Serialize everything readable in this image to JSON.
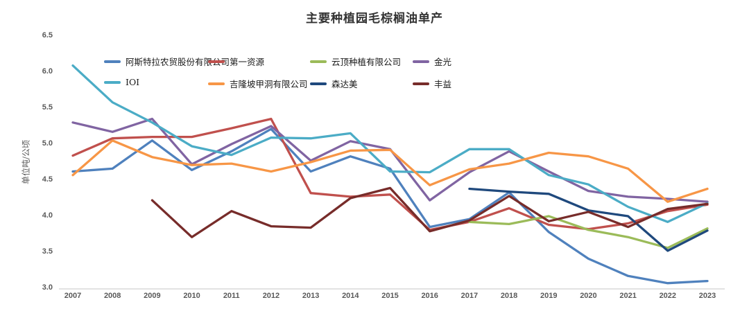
{
  "chart_data": {
    "type": "line",
    "title": "主要种植园毛棕榈油单产",
    "ylabel": "单位吨/公顷",
    "x": [
      "2007",
      "2008",
      "2009",
      "2010",
      "2011",
      "2012",
      "2013",
      "2014",
      "2015",
      "2016",
      "2017",
      "2018",
      "2019",
      "2020",
      "2021",
      "2022",
      "2023"
    ],
    "y_ticks": [
      "6.5",
      "6.0",
      "5.5",
      "5.0",
      "4.5",
      "4.0",
      "3.5",
      "3.0"
    ],
    "ylim": [
      3.0,
      6.5
    ],
    "grid": false,
    "legend_position": "top-left-two-rows",
    "colors": {
      "axis_line": "#D9D9D9",
      "tick_text": "#595959",
      "title_text": "#333333",
      "legend_text": "#1A1A1A"
    },
    "series": [
      {
        "id": "astra",
        "name": "阿斯特拉农贸股份有限公司",
        "color": "#4F81BD",
        "values": [
          4.62,
          4.66,
          5.05,
          4.64,
          4.9,
          5.21,
          4.62,
          4.83,
          4.66,
          3.85,
          3.96,
          4.33,
          3.78,
          3.41,
          3.17,
          3.07,
          3.1
        ]
      },
      {
        "id": "first-resources",
        "name": "第一资源",
        "color": "#C0504D",
        "values": [
          4.84,
          5.08,
          5.1,
          5.1,
          5.22,
          5.35,
          4.32,
          4.27,
          4.3,
          3.81,
          3.92,
          4.11,
          3.88,
          3.82,
          3.9,
          4.07,
          4.16
        ]
      },
      {
        "id": "genting",
        "name": "云顶种植有限公司",
        "color": "#9BBB59",
        "values": [
          null,
          null,
          null,
          null,
          null,
          null,
          null,
          null,
          null,
          null,
          3.92,
          3.89,
          4.0,
          3.81,
          3.71,
          3.56,
          3.83
        ]
      },
      {
        "id": "golden-agri",
        "name": "金光",
        "color": "#8064A2",
        "values": [
          5.3,
          5.17,
          5.35,
          4.72,
          5.0,
          5.25,
          4.77,
          5.04,
          4.93,
          4.22,
          4.61,
          4.9,
          4.62,
          4.35,
          4.27,
          4.24,
          4.2
        ]
      },
      {
        "id": "ioi",
        "name": "IOI",
        "color": "#4BACC6",
        "values": [
          6.09,
          5.58,
          5.3,
          4.97,
          4.85,
          5.09,
          5.08,
          5.15,
          4.62,
          4.61,
          4.93,
          4.93,
          4.57,
          4.44,
          4.13,
          3.92,
          4.18
        ]
      },
      {
        "id": "klk",
        "name": "吉隆坡甲洞有限公司",
        "color": "#F79646",
        "values": [
          4.57,
          5.05,
          4.82,
          4.71,
          4.73,
          4.62,
          4.75,
          4.91,
          4.92,
          4.43,
          4.65,
          4.73,
          4.88,
          4.83,
          4.66,
          4.2,
          4.38
        ]
      },
      {
        "id": "sime-darby",
        "name": "森达美",
        "color": "#1F497D",
        "values": [
          null,
          null,
          null,
          null,
          null,
          null,
          null,
          null,
          null,
          null,
          4.38,
          4.34,
          4.31,
          4.08,
          4.0,
          3.52,
          3.8
        ]
      },
      {
        "id": "wilmar",
        "name": "丰益",
        "color": "#772C2A",
        "values": [
          null,
          null,
          4.22,
          3.71,
          4.07,
          3.86,
          3.84,
          4.25,
          4.39,
          3.79,
          3.94,
          4.28,
          3.93,
          4.06,
          3.85,
          4.1,
          4.17
        ]
      }
    ]
  }
}
